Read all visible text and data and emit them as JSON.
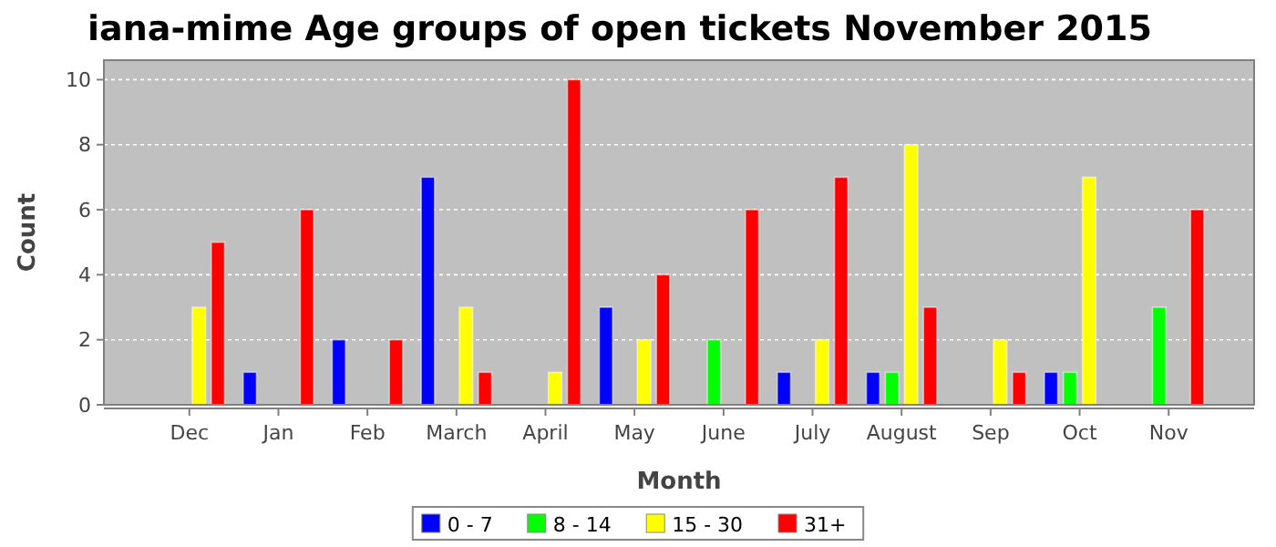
{
  "chart_data": {
    "type": "bar",
    "title": "iana-mime Age groups of open tickets November 2015",
    "xlabel": "Month",
    "ylabel": "Count",
    "categories": [
      "Dec",
      "Jan",
      "Feb",
      "March",
      "April",
      "May",
      "June",
      "July",
      "August",
      "Sep",
      "Oct",
      "Nov"
    ],
    "series": [
      {
        "name": "0 - 7",
        "color": "#0000ff",
        "values": [
          0,
          1,
          2,
          7,
          0,
          3,
          0,
          1,
          1,
          0,
          1,
          0
        ]
      },
      {
        "name": "8 - 14",
        "color": "#00ff00",
        "values": [
          0,
          0,
          0,
          0,
          0,
          0,
          2,
          0,
          1,
          0,
          1,
          3
        ]
      },
      {
        "name": "15 - 30",
        "color": "#ffff00",
        "values": [
          3,
          0,
          0,
          3,
          1,
          2,
          0,
          2,
          8,
          2,
          7,
          0
        ]
      },
      {
        "name": "31+",
        "color": "#ff0000",
        "values": [
          5,
          6,
          2,
          1,
          10,
          4,
          6,
          7,
          3,
          1,
          0,
          6
        ]
      }
    ],
    "ylim": [
      0,
      10.6
    ],
    "yticks": [
      0,
      2,
      4,
      6,
      8,
      10
    ],
    "grid": "y",
    "legend": "bottom"
  }
}
